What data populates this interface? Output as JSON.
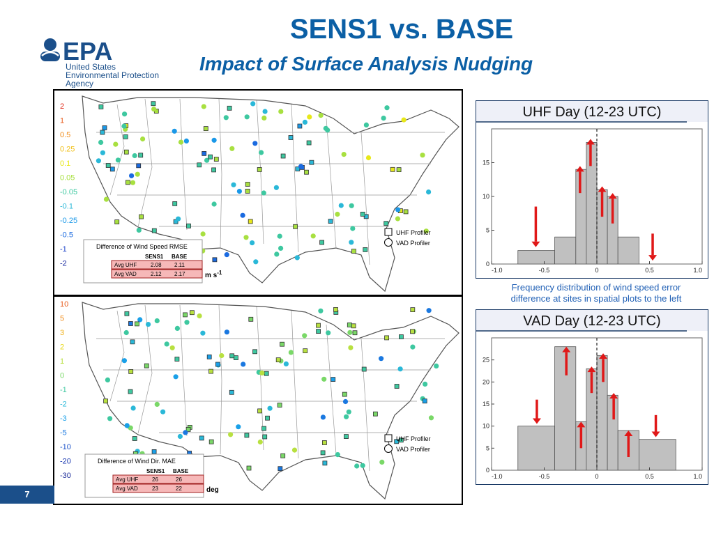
{
  "slide": {
    "title": "SENS1 vs. BASE",
    "subtitle": "Impact of Surface Analysis Nudging",
    "page_number": "7",
    "caption_line1": "Frequency distribution of wind speed error",
    "caption_line2": "difference at sites in spatial plots to the left"
  },
  "logo": {
    "wordmark": "EPA",
    "line1": "United States",
    "line2": "Environmental Protection",
    "line3": "Agency",
    "color": "#1b4f8a"
  },
  "map_speed": {
    "legend_ticks": [
      {
        "label": "2",
        "color": "#e02a1a"
      },
      {
        "label": "1",
        "color": "#e85a1a"
      },
      {
        "label": "0.5",
        "color": "#f08c1a"
      },
      {
        "label": "0.25",
        "color": "#f0c01a"
      },
      {
        "label": "0.1",
        "color": "#e8e81a"
      },
      {
        "label": "0.05",
        "color": "#a8e040"
      },
      {
        "label": "-0.05",
        "color": "#3ec8a0"
      },
      {
        "label": "-0.1",
        "color": "#2ab8d8"
      },
      {
        "label": "-0.25",
        "color": "#1a98e8"
      },
      {
        "label": "-0.5",
        "color": "#1a6ae0"
      },
      {
        "label": "-1",
        "color": "#1a40c8"
      },
      {
        "label": "-2",
        "color": "#1a2aa0"
      }
    ],
    "profiler_legend": {
      "uhf": "UHF Profiler",
      "vad": "VAD Profiler"
    },
    "stats_box": {
      "title": "Difference of Wind Speed RMSE",
      "col1": "SENS1",
      "col2": "BASE",
      "rows": [
        {
          "label": "Avg UHF",
          "sens1": "2.08",
          "base": "2.11"
        },
        {
          "label": "Avg VAD",
          "sens1": "2.12",
          "base": "2.17"
        }
      ],
      "unit": "m s",
      "unit_exp": "-1"
    }
  },
  "map_dir": {
    "legend_ticks": [
      {
        "label": "10",
        "color": "#e85a1a"
      },
      {
        "label": "5",
        "color": "#f08c1a"
      },
      {
        "label": "3",
        "color": "#f0b01a"
      },
      {
        "label": "2",
        "color": "#e8d81a"
      },
      {
        "label": "1",
        "color": "#b8e040"
      },
      {
        "label": "0",
        "color": "#7ad868"
      },
      {
        "label": "-1",
        "color": "#3ec8a0"
      },
      {
        "label": "-2",
        "color": "#2ab8d8"
      },
      {
        "label": "-3",
        "color": "#1aa0e8"
      },
      {
        "label": "-5",
        "color": "#1a78e0"
      },
      {
        "label": "-10",
        "color": "#1a50c8"
      },
      {
        "label": "-20",
        "color": "#1a38b0"
      },
      {
        "label": "-30",
        "color": "#1a2a98"
      }
    ],
    "profiler_legend": {
      "uhf": "UHF Profiler",
      "vad": "VAD Profiler"
    },
    "stats_box": {
      "title": "Difference of Wind Dir. MAE",
      "col1": "SENS1",
      "col2": "BASE",
      "rows": [
        {
          "label": "Avg UHF",
          "sens1": "26",
          "base": "26"
        },
        {
          "label": "Avg VAD",
          "sens1": "23",
          "base": "22"
        }
      ],
      "unit": "deg"
    }
  },
  "chart_data": [
    {
      "type": "bar",
      "title": "UHF Day (12-23 UTC)",
      "bin_edges": [
        -0.75,
        -0.4,
        -0.2,
        -0.1,
        0.0,
        0.1,
        0.2,
        0.4
      ],
      "values": [
        2,
        4,
        14,
        18,
        11,
        10,
        4
      ],
      "xlim": [
        -1.0,
        1.0
      ],
      "ylim": [
        0,
        20
      ],
      "xticks": [
        "-1.0",
        "-0.5",
        "0",
        "0.5",
        "1.0"
      ],
      "yticks": [
        "0",
        "5",
        "10",
        "15"
      ],
      "ytick_values": [
        0,
        5,
        10,
        15
      ],
      "xtick_values": [
        -1.0,
        -0.5,
        0,
        0.5,
        1.0
      ],
      "reference_line": 0,
      "arrows": [
        {
          "x": -0.58,
          "from": 8.5,
          "to": 2.5,
          "dir": "down"
        },
        {
          "x": -0.16,
          "from": 10.5,
          "to": 14.5,
          "dir": "up"
        },
        {
          "x": -0.06,
          "from": 14.5,
          "to": 18.5,
          "dir": "up"
        },
        {
          "x": 0.05,
          "from": 7,
          "to": 11.5,
          "dir": "up"
        },
        {
          "x": 0.15,
          "from": 6,
          "to": 10.5,
          "dir": "up"
        },
        {
          "x": 0.53,
          "from": 4.5,
          "to": 0.5,
          "dir": "down"
        }
      ],
      "bar_color": "#c0c0c0",
      "arrow_color": "#e01818"
    },
    {
      "type": "bar",
      "title": "VAD Day (12-23 UTC)",
      "bin_edges": [
        -0.75,
        -0.4,
        -0.2,
        -0.1,
        0.0,
        0.1,
        0.2,
        0.4,
        0.75
      ],
      "values": [
        10,
        28,
        11,
        23,
        26,
        17,
        9,
        7
      ],
      "xlim": [
        -1.0,
        1.0
      ],
      "ylim": [
        0,
        30
      ],
      "xticks": [
        "-1.0",
        "-0.5",
        "0",
        "0.5",
        "1.0"
      ],
      "yticks": [
        "0",
        "5",
        "10",
        "15",
        "20",
        "25"
      ],
      "ytick_values": [
        0,
        5,
        10,
        15,
        20,
        25
      ],
      "xtick_values": [
        -1.0,
        -0.5,
        0,
        0.5,
        1.0
      ],
      "reference_line": 0,
      "arrows": [
        {
          "x": -0.57,
          "from": 16,
          "to": 10.5,
          "dir": "down"
        },
        {
          "x": -0.29,
          "from": 21.5,
          "to": 28,
          "dir": "up"
        },
        {
          "x": -0.15,
          "from": 5,
          "to": 11,
          "dir": "up"
        },
        {
          "x": -0.05,
          "from": 17.5,
          "to": 23.5,
          "dir": "up"
        },
        {
          "x": 0.06,
          "from": 20,
          "to": 26.5,
          "dir": "up"
        },
        {
          "x": 0.16,
          "from": 11.5,
          "to": 17.5,
          "dir": "up"
        },
        {
          "x": 0.3,
          "from": 3,
          "to": 9,
          "dir": "up"
        },
        {
          "x": 0.56,
          "from": 12.5,
          "to": 7.5,
          "dir": "down"
        }
      ],
      "bar_color": "#c0c0c0",
      "arrow_color": "#e01818"
    }
  ]
}
